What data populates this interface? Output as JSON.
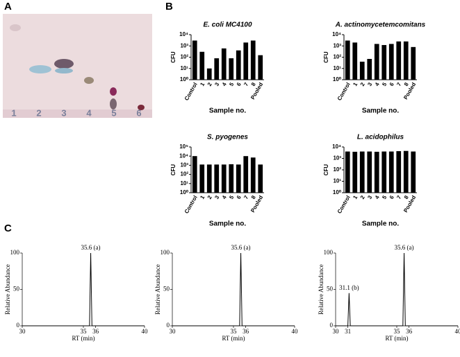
{
  "panel_labels": [
    "A",
    "B",
    "C"
  ],
  "tlc_lanes": [
    "1",
    "2",
    "3",
    "4",
    "5",
    "6"
  ],
  "chart_data": [
    {
      "type": "bar",
      "title": "E. coli MC4100",
      "ylabel": "CFU",
      "xlabel": "Sample no.",
      "log_scale": true,
      "color": "#000000",
      "categories": [
        "Control",
        "1",
        "2",
        "3",
        "4",
        "5",
        "6",
        "7",
        "8",
        "Pooled"
      ],
      "values": [
        3000,
        300,
        10,
        80,
        600,
        80,
        400,
        2000,
        3000,
        150
      ],
      "ylim": [
        1,
        10000
      ],
      "yticks": [
        {
          "value": 1,
          "label": "10⁰"
        },
        {
          "value": 10,
          "label": "10¹"
        },
        {
          "value": 100,
          "label": "10²"
        },
        {
          "value": 1000,
          "label": "10³"
        },
        {
          "value": 10000,
          "label": "10⁴"
        }
      ]
    },
    {
      "type": "bar",
      "title": "A. actinomycetemcomitans",
      "ylabel": "CFU",
      "xlabel": "Sample no.",
      "log_scale": true,
      "color": "#000000",
      "categories": [
        "Control",
        "1",
        "2",
        "3",
        "4",
        "5",
        "6",
        "7",
        "8",
        "Pooled"
      ],
      "values": [
        3000,
        2000,
        40,
        70,
        1500,
        1200,
        1500,
        2500,
        2500,
        800
      ],
      "ylim": [
        1,
        10000
      ],
      "yticks": [
        {
          "value": 1,
          "label": "10⁰"
        },
        {
          "value": 10,
          "label": "10¹"
        },
        {
          "value": 100,
          "label": "10²"
        },
        {
          "value": 1000,
          "label": "10³"
        },
        {
          "value": 10000,
          "label": "10⁴"
        }
      ]
    },
    {
      "type": "bar",
      "title": "S. pyogenes",
      "ylabel": "CFU",
      "xlabel": "Sample no.",
      "log_scale": true,
      "color": "#000000",
      "categories": [
        "Control",
        "1",
        "2",
        "3",
        "4",
        "5",
        "6",
        "7",
        "8",
        "Pooled"
      ],
      "values": [
        10000,
        1200,
        1200,
        1200,
        1200,
        1300,
        1200,
        10000,
        7000,
        1200
      ],
      "ylim": [
        1,
        100000
      ],
      "yticks": [
        {
          "value": 1,
          "label": "10⁰"
        },
        {
          "value": 10,
          "label": "10¹"
        },
        {
          "value": 100,
          "label": "10²"
        },
        {
          "value": 1000,
          "label": "10³"
        },
        {
          "value": 10000,
          "label": "10⁴"
        },
        {
          "value": 100000,
          "label": "10⁵"
        }
      ]
    },
    {
      "type": "bar",
      "title": "L. acidophilus",
      "ylabel": "CFU",
      "xlabel": "Sample no.",
      "log_scale": true,
      "color": "#000000",
      "categories": [
        "Control",
        "1",
        "2",
        "3",
        "4",
        "5",
        "6",
        "7",
        "8",
        "Pooled"
      ],
      "values": [
        4000,
        3800,
        4000,
        4000,
        3800,
        4000,
        4000,
        4300,
        4500,
        4000
      ],
      "ylim": [
        1,
        10000
      ],
      "yticks": [
        {
          "value": 1,
          "label": "10⁰"
        },
        {
          "value": 10,
          "label": "10¹"
        },
        {
          "value": 100,
          "label": "10²"
        },
        {
          "value": 1000,
          "label": "10³"
        },
        {
          "value": 10000,
          "label": "10⁴"
        }
      ]
    },
    {
      "type": "line",
      "ylabel": "Relative Abundance",
      "xlabel": "RT (min)",
      "color": "#000000",
      "x": [
        30,
        35.5,
        35.6,
        35.7,
        40
      ],
      "values": [
        0,
        0,
        100,
        0,
        0
      ],
      "xlim": [
        30,
        40
      ],
      "xticks": [
        30,
        35,
        36,
        40
      ],
      "ylim": [
        0,
        100
      ],
      "yticks": [
        0,
        50,
        100
      ],
      "annotations": [
        {
          "text": "35.6 (a)",
          "x": 35.6,
          "y": 100
        }
      ]
    },
    {
      "type": "line",
      "ylabel": "Relative Abundance",
      "xlabel": "RT (min)",
      "color": "#000000",
      "x": [
        30,
        35.5,
        35.6,
        35.7,
        40
      ],
      "values": [
        0,
        0,
        100,
        0,
        0
      ],
      "xlim": [
        30,
        40
      ],
      "xticks": [
        30,
        35,
        36,
        40
      ],
      "ylim": [
        0,
        100
      ],
      "yticks": [
        0,
        50,
        100
      ],
      "annotations": [
        {
          "text": "35.6 (a)",
          "x": 35.6,
          "y": 100
        }
      ]
    },
    {
      "type": "line",
      "ylabel": "Relative Abundance",
      "xlabel": "RT (min)",
      "color": "#000000",
      "x": [
        30,
        31,
        31.1,
        31.2,
        35.5,
        35.6,
        35.7,
        40
      ],
      "values": [
        0,
        0,
        45,
        0,
        0,
        100,
        0,
        0
      ],
      "xlim": [
        30,
        40
      ],
      "xticks": [
        30,
        31,
        35,
        36,
        40
      ],
      "ylim": [
        0,
        100
      ],
      "yticks": [
        0,
        50,
        100
      ],
      "annotations": [
        {
          "text": "31.1 (b)",
          "x": 31.1,
          "y": 45
        },
        {
          "text": "35.6 (a)",
          "x": 35.6,
          "y": 100
        }
      ]
    }
  ]
}
